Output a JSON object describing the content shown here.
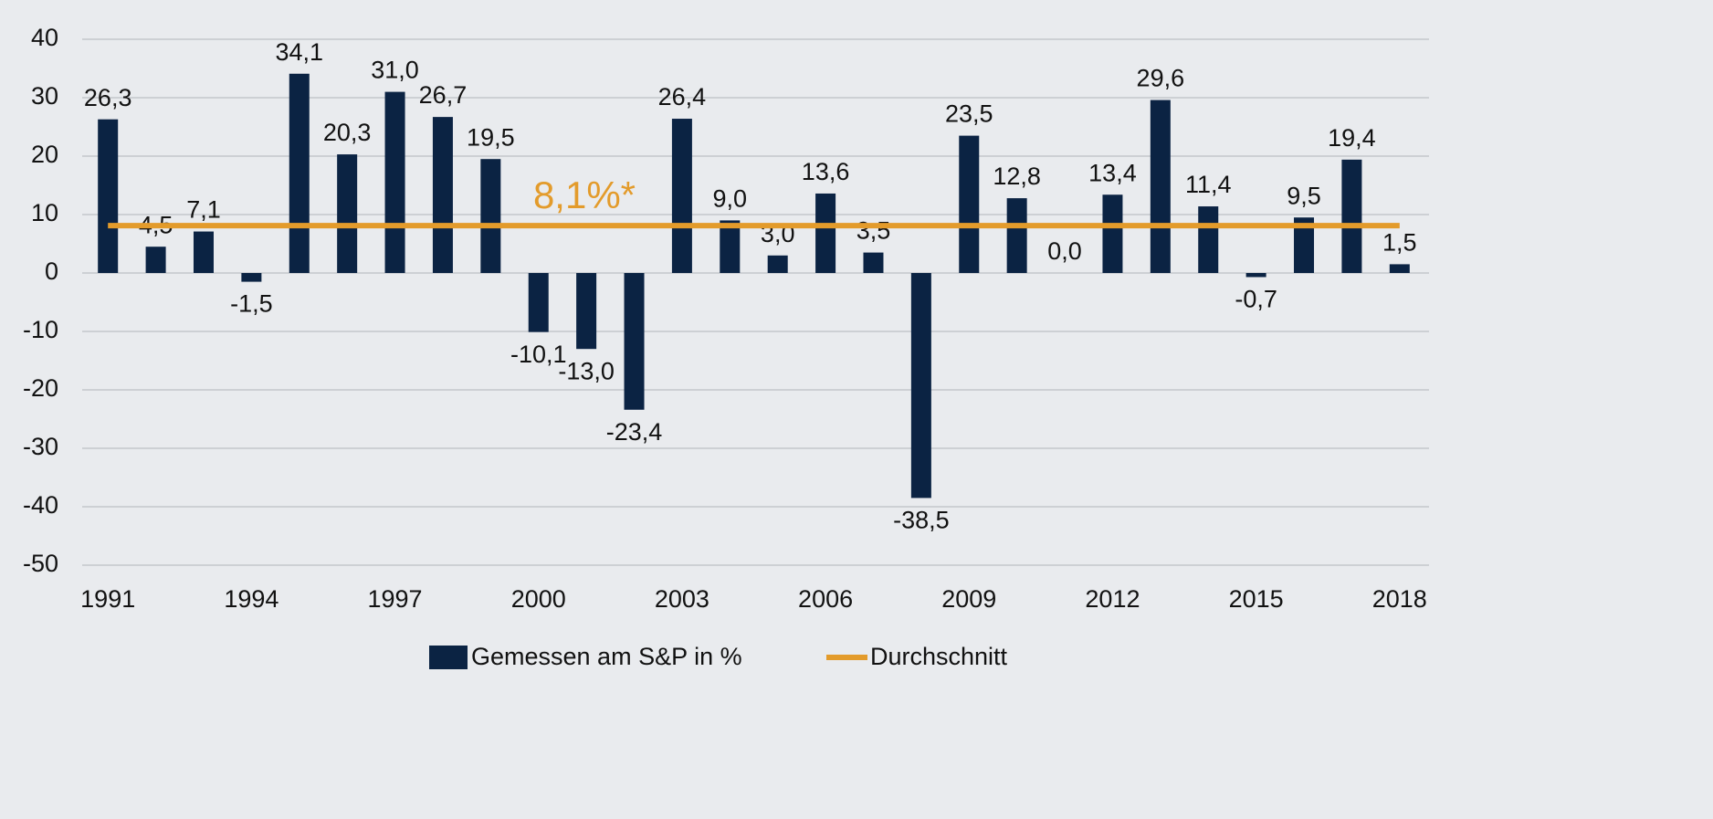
{
  "chart_data": {
    "type": "bar",
    "categories": [
      "1991",
      null,
      null,
      "1994",
      null,
      null,
      "1997",
      null,
      null,
      "2000",
      null,
      null,
      "2003",
      null,
      null,
      "2006",
      null,
      null,
      "2009",
      null,
      null,
      "2012",
      null,
      null,
      "2015",
      null,
      null,
      "2018"
    ],
    "series": [
      {
        "name": "Gemessen am S&P in %",
        "color": "#0b2343",
        "values": [
          26.3,
          4.5,
          7.1,
          -1.5,
          34.1,
          20.3,
          31.0,
          26.7,
          19.5,
          -10.1,
          -13.0,
          -23.4,
          26.4,
          9.0,
          3.0,
          13.6,
          3.5,
          -38.5,
          23.5,
          12.8,
          0.0,
          13.4,
          29.6,
          11.4,
          -0.7,
          9.5,
          19.4,
          1.5
        ],
        "value_labels": [
          "26,3",
          "4,5",
          "7,1",
          "-1,5",
          "34,1",
          "20,3",
          "31,0",
          "26,7",
          "19,5",
          "-10,1",
          "-13,0",
          "-23,4",
          "26,4",
          "9,0",
          "3,0",
          "13,6",
          "3,5",
          "-38,5",
          "23,5",
          "12,8",
          "0,0",
          "13,4",
          "29,6",
          "11,4",
          "-0,7",
          "9,5",
          "19,4",
          "1,5"
        ]
      },
      {
        "name": "Durchschnitt",
        "color": "#e39b2b",
        "type": "line",
        "values": [
          8.1,
          8.1,
          8.1,
          8.1,
          8.1,
          8.1,
          8.1,
          8.1,
          8.1,
          8.1,
          8.1,
          8.1,
          8.1,
          8.1,
          8.1,
          8.1,
          8.1,
          8.1,
          8.1,
          8.1,
          8.1,
          8.1,
          8.1,
          8.1,
          8.1,
          8.1,
          8.1,
          8.1
        ]
      }
    ],
    "annotation": "8,1%*",
    "ylim": [
      -50,
      40
    ],
    "yticks": [
      40,
      30,
      20,
      10,
      0,
      -10,
      -20,
      -30,
      -40,
      -50
    ],
    "grid": true
  }
}
